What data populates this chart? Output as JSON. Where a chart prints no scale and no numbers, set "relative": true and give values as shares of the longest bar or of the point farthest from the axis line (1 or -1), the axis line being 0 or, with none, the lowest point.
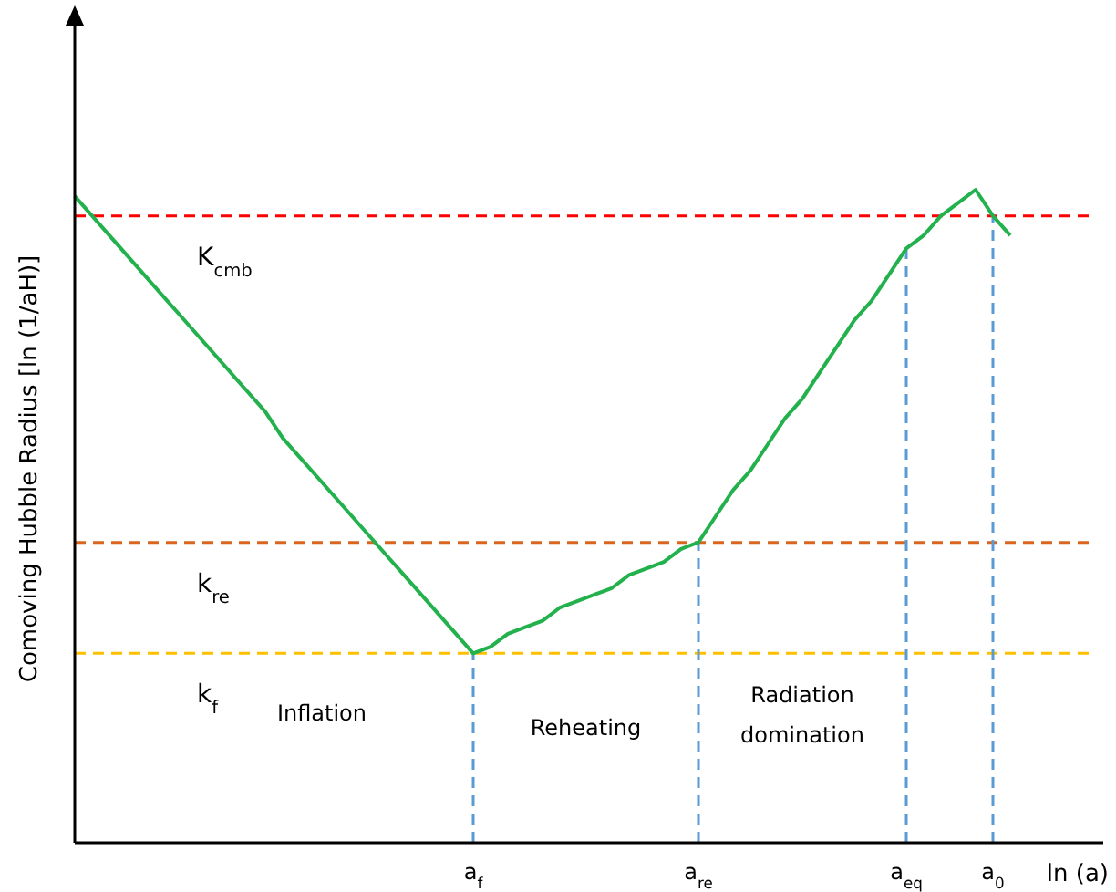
{
  "chart_data": {
    "type": "line",
    "relative": true,
    "ylabel": "Comoving Hubble Radius [ln (1/aH)]",
    "xlabel": "ln (a)",
    "categories": [
      null,
      null,
      null,
      null,
      null,
      null,
      null,
      null,
      null,
      null,
      null,
      null,
      null,
      null,
      null,
      null,
      null,
      null,
      null,
      null,
      null,
      null,
      null,
      "a$_{f}$",
      null,
      null,
      null,
      null,
      null,
      null,
      null,
      null,
      null,
      null,
      null,
      null,
      "a$_{re}$",
      null,
      null,
      null,
      null,
      null,
      null,
      null,
      null,
      null,
      null,
      null,
      "a$_{eq}$",
      null,
      null,
      null,
      null,
      "a$_{0}$",
      null
    ],
    "series": [
      {
        "color": "#22b14c",
        "values": [
          0.99,
          0.96,
          0.93,
          0.9,
          0.87,
          0.84,
          0.81,
          0.78,
          0.75,
          0.72,
          0.69,
          0.66,
          0.62,
          0.59,
          0.56,
          0.53,
          0.5,
          0.47,
          0.44,
          0.41,
          0.38,
          0.35,
          0.32,
          0.29,
          0.3,
          0.32,
          0.33,
          0.34,
          0.36,
          0.37,
          0.38,
          0.39,
          0.41,
          0.42,
          0.43,
          0.45,
          0.46,
          0.5,
          0.54,
          0.57,
          0.61,
          0.65,
          0.68,
          0.72,
          0.76,
          0.8,
          0.83,
          0.87,
          0.91,
          0.93,
          0.96,
          0.98,
          1,
          0.96,
          0.93
        ]
      }
    ],
    "ref_lines": [
      {
        "axis": "y",
        "value": 0.96,
        "label": "K$_{cmb}$",
        "color": "#ff0000",
        "line_style": "dashed"
      },
      {
        "axis": "y",
        "value": 0.46,
        "label": "k$_{re}$",
        "color": "#d9651e",
        "line_style": "dashed"
      },
      {
        "axis": "y",
        "value": 0.29,
        "label": "k$_{f}$",
        "color": "#ffc000",
        "line_style": "dashed"
      },
      {
        "axis": "x",
        "value": "a$_{f}$",
        "color": "#5b9bd5",
        "line_style": "dashed"
      },
      {
        "axis": "x",
        "value": "a$_{re}$",
        "color": "#5b9bd5",
        "line_style": "dashed"
      },
      {
        "axis": "x",
        "value": "a$_{eq}$",
        "color": "#5b9bd5",
        "line_style": "dashed"
      },
      {
        "axis": "x",
        "value": "a$_{0}$",
        "color": "#5b9bd5",
        "line_style": "dashed"
      }
    ],
    "annotations": [
      "Inflation",
      "Reheating",
      "Radiation\ndomination"
    ]
  }
}
